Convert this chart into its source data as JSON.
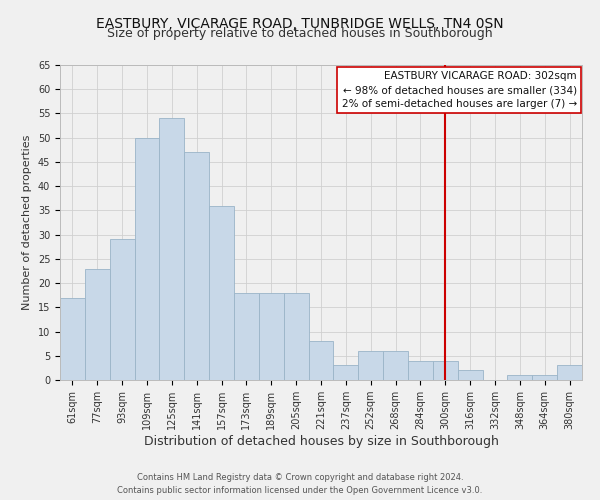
{
  "title": "EASTBURY, VICARAGE ROAD, TUNBRIDGE WELLS, TN4 0SN",
  "subtitle": "Size of property relative to detached houses in Southborough",
  "xlabel": "Distribution of detached houses by size in Southborough",
  "ylabel": "Number of detached properties",
  "bin_labels": [
    "61sqm",
    "77sqm",
    "93sqm",
    "109sqm",
    "125sqm",
    "141sqm",
    "157sqm",
    "173sqm",
    "189sqm",
    "205sqm",
    "221sqm",
    "237sqm",
    "252sqm",
    "268sqm",
    "284sqm",
    "300sqm",
    "316sqm",
    "332sqm",
    "348sqm",
    "364sqm",
    "380sqm"
  ],
  "bar_values": [
    17,
    23,
    29,
    50,
    54,
    47,
    36,
    18,
    18,
    18,
    8,
    3,
    6,
    6,
    4,
    4,
    2,
    0,
    1,
    1,
    3
  ],
  "bar_color": "#c8d8e8",
  "bar_edge_color": "#9ab4c8",
  "vline_x_index": 15,
  "vline_color": "#cc0000",
  "ylim": [
    0,
    65
  ],
  "yticks": [
    0,
    5,
    10,
    15,
    20,
    25,
    30,
    35,
    40,
    45,
    50,
    55,
    60,
    65
  ],
  "annotation_title": "EASTBURY VICARAGE ROAD: 302sqm",
  "annotation_line1": "← 98% of detached houses are smaller (334)",
  "annotation_line2": "2% of semi-detached houses are larger (7) →",
  "footer_line1": "Contains HM Land Registry data © Crown copyright and database right 2024.",
  "footer_line2": "Contains public sector information licensed under the Open Government Licence v3.0.",
  "bg_color": "#f0f0f0",
  "plot_bg_color": "#f0f0f0",
  "grid_color": "#d0d0d0",
  "title_fontsize": 10,
  "subtitle_fontsize": 9,
  "xlabel_fontsize": 9,
  "ylabel_fontsize": 8,
  "tick_fontsize": 7,
  "annotation_fontsize": 7.5,
  "footer_fontsize": 6,
  "annotation_box_color": "#ffffff",
  "annotation_border_color": "#cc0000",
  "spine_color": "#bbbbbb"
}
